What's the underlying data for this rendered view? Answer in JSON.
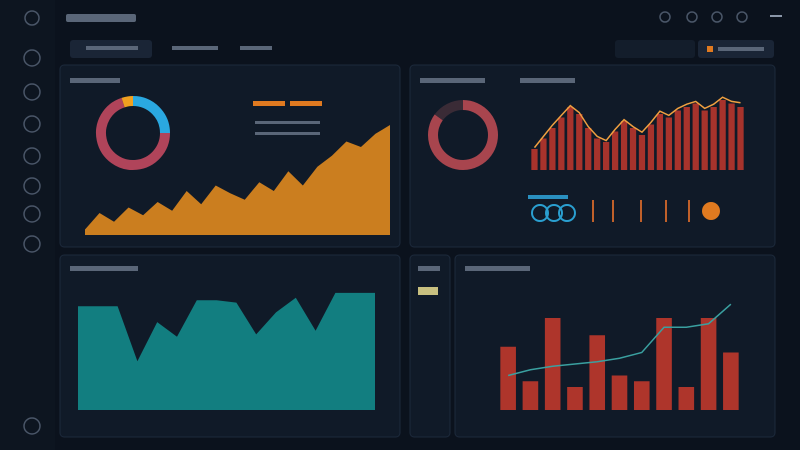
{
  "chart_data": [
    {
      "type": "pie",
      "values": [
        25,
        70,
        5
      ],
      "colors": [
        "#2aa8e0",
        "#b0445a",
        "#f0a020"
      ]
    },
    {
      "type": "area",
      "ylim": [
        0,
        100
      ],
      "series": [
        {
          "color": "#e08a1e",
          "values": [
            5,
            20,
            12,
            25,
            18,
            30,
            22,
            40,
            28,
            45,
            38,
            32,
            48,
            40,
            58,
            45,
            62,
            72,
            85,
            80,
            92,
            100
          ]
        }
      ]
    },
    {
      "type": "pie",
      "values": [
        85,
        15
      ],
      "colors": [
        "#a8454e",
        "#3a2b36"
      ]
    },
    {
      "type": "bar",
      "ylim": [
        0,
        100
      ],
      "series": [
        {
          "color": "#b8362c",
          "values": [
            30,
            45,
            60,
            75,
            90,
            80,
            60,
            45,
            40,
            55,
            70,
            60,
            50,
            65,
            80,
            75,
            85,
            90,
            95,
            85,
            90,
            100,
            95,
            90
          ]
        },
        {
          "type": "line",
          "color": "#f0a040",
          "values": [
            32,
            48,
            64,
            78,
            92,
            82,
            62,
            48,
            42,
            58,
            72,
            62,
            54,
            68,
            84,
            78,
            88,
            94,
            98,
            88,
            94,
            104,
            98,
            96
          ]
        }
      ]
    },
    {
      "type": "area",
      "ylim": [
        0,
        100
      ],
      "series": [
        {
          "color": "#138a8a",
          "values": [
            85,
            85,
            85,
            40,
            72,
            60,
            90,
            90,
            88,
            62,
            80,
            92,
            65,
            96,
            96,
            96
          ]
        }
      ]
    },
    {
      "type": "bar",
      "ylim": [
        0,
        100
      ],
      "series": [
        {
          "color": "#c0392b",
          "values": [
            55,
            25,
            80,
            20,
            65,
            30,
            25,
            80,
            20,
            80,
            50
          ]
        },
        {
          "type": "line",
          "color": "#3aa0a0",
          "values": [
            30,
            35,
            38,
            40,
            42,
            45,
            50,
            72,
            72,
            75,
            92
          ]
        }
      ]
    }
  ]
}
